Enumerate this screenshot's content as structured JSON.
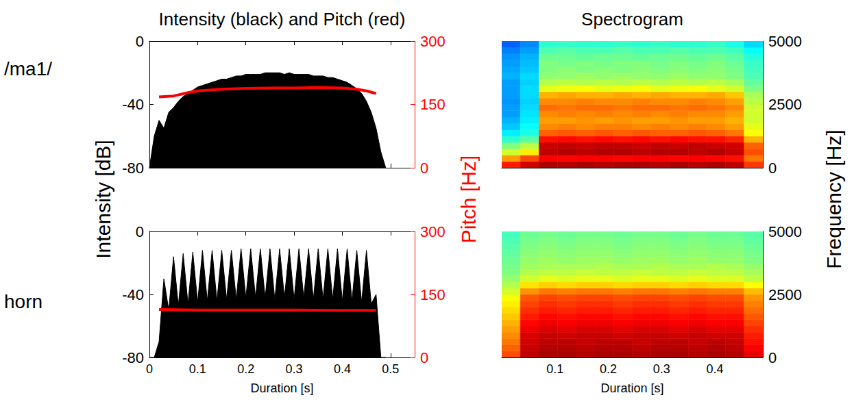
{
  "chart_data": [
    {
      "type": "line",
      "title": "Intensity (black) and Pitch (red)",
      "row_label": "/ma1/",
      "ylabel": "Intensity [dB]",
      "y2label": "Pitch [Hz]",
      "xlim": [
        0,
        0.55
      ],
      "xticks": [
        0,
        0.1,
        0.2,
        0.3,
        0.4,
        0.5
      ],
      "ylim": [
        -80,
        0
      ],
      "yticks": [
        -80,
        -40,
        0
      ],
      "y2lim": [
        0,
        300
      ],
      "y2ticks": [
        0,
        150,
        300
      ],
      "tick_labels": "y",
      "series": [
        {
          "type": "area",
          "color": "#000000",
          "x": [
            0,
            0.01,
            0.02,
            0.03,
            0.04,
            0.05,
            0.06,
            0.07,
            0.08,
            0.09,
            0.1,
            0.11,
            0.12,
            0.13,
            0.14,
            0.15,
            0.16,
            0.17,
            0.18,
            0.19,
            0.2,
            0.21,
            0.22,
            0.23,
            0.24,
            0.25,
            0.26,
            0.27,
            0.28,
            0.29,
            0.3,
            0.31,
            0.32,
            0.33,
            0.34,
            0.35,
            0.36,
            0.37,
            0.38,
            0.39,
            0.4,
            0.41,
            0.42,
            0.43,
            0.44,
            0.45,
            0.46,
            0.47,
            0.48,
            0.49
          ],
          "values": [
            -80,
            -60,
            -50,
            -55,
            -45,
            -42,
            -38,
            -35,
            -33,
            -31,
            -29,
            -28,
            -27,
            -26,
            -25,
            -24,
            -24,
            -23,
            -22,
            -22,
            -21,
            -21,
            -21,
            -21,
            -20,
            -20,
            -20,
            -20,
            -21,
            -20,
            -21,
            -21,
            -21,
            -21,
            -22,
            -22,
            -22,
            -23,
            -23,
            -24,
            -25,
            -26,
            -28,
            -30,
            -33,
            -38,
            -45,
            -55,
            -70,
            -80
          ]
        },
        {
          "type": "line",
          "color": "#ff0000",
          "axis": "y2",
          "x": [
            0.02,
            0.05,
            0.08,
            0.1,
            0.15,
            0.2,
            0.25,
            0.3,
            0.35,
            0.4,
            0.43,
            0.45,
            0.47
          ],
          "values": [
            168,
            170,
            178,
            182,
            186,
            188,
            189,
            189,
            190,
            189,
            186,
            182,
            176
          ]
        }
      ]
    },
    {
      "type": "heatmap",
      "title": "Spectrogram",
      "ylabel": "Frequency [Hz]",
      "xlim": [
        0,
        0.49
      ],
      "xticks": [
        0.1,
        0.2,
        0.3,
        0.4
      ],
      "ylim": [
        0,
        5000
      ],
      "yticks": [
        0,
        2500,
        5000
      ],
      "tick_labels": "y",
      "level_range": [
        0,
        100
      ],
      "x_edges": [
        0,
        0.035,
        0.07,
        0.105,
        0.14,
        0.175,
        0.21,
        0.245,
        0.28,
        0.315,
        0.35,
        0.385,
        0.42,
        0.455,
        0.49
      ],
      "y_edges": [
        0,
        250,
        500,
        750,
        1000,
        1250,
        1500,
        1750,
        2000,
        2250,
        2500,
        2750,
        3000,
        3250,
        3500,
        3750,
        4000,
        4250,
        4500,
        4750,
        5000
      ],
      "levels": [
        [
          85,
          92,
          96,
          95,
          96,
          95,
          96,
          96,
          95,
          96,
          95,
          96,
          94,
          82
        ],
        [
          72,
          80,
          88,
          87,
          88,
          88,
          87,
          88,
          88,
          87,
          88,
          87,
          86,
          76
        ],
        [
          58,
          64,
          94,
          95,
          94,
          95,
          95,
          94,
          95,
          95,
          94,
          95,
          93,
          80
        ],
        [
          50,
          56,
          93,
          94,
          93,
          94,
          94,
          93,
          94,
          93,
          94,
          93,
          92,
          78
        ],
        [
          42,
          46,
          86,
          87,
          86,
          87,
          86,
          87,
          86,
          87,
          86,
          86,
          84,
          70
        ],
        [
          36,
          40,
          78,
          79,
          78,
          79,
          78,
          79,
          78,
          78,
          79,
          78,
          76,
          62
        ],
        [
          32,
          38,
          74,
          75,
          74,
          75,
          75,
          74,
          75,
          74,
          75,
          74,
          72,
          60
        ],
        [
          30,
          36,
          72,
          72,
          73,
          72,
          73,
          72,
          72,
          73,
          72,
          72,
          70,
          58
        ],
        [
          28,
          35,
          74,
          75,
          74,
          75,
          74,
          75,
          74,
          75,
          74,
          74,
          72,
          58
        ],
        [
          28,
          34,
          77,
          76,
          77,
          77,
          76,
          77,
          77,
          76,
          77,
          76,
          74,
          58
        ],
        [
          27,
          33,
          74,
          74,
          75,
          74,
          74,
          75,
          74,
          74,
          75,
          74,
          72,
          56
        ],
        [
          28,
          34,
          70,
          71,
          70,
          70,
          71,
          70,
          71,
          70,
          70,
          71,
          68,
          54
        ],
        [
          28,
          34,
          60,
          61,
          62,
          60,
          61,
          62,
          60,
          61,
          62,
          60,
          58,
          50
        ],
        [
          28,
          33,
          55,
          56,
          55,
          56,
          55,
          56,
          55,
          56,
          55,
          56,
          54,
          47
        ],
        [
          30,
          34,
          52,
          52,
          53,
          52,
          53,
          52,
          52,
          53,
          52,
          52,
          50,
          45
        ],
        [
          29,
          32,
          50,
          51,
          50,
          51,
          50,
          51,
          50,
          51,
          50,
          51,
          49,
          44
        ],
        [
          28,
          31,
          50,
          49,
          50,
          49,
          50,
          50,
          49,
          50,
          49,
          50,
          48,
          43
        ],
        [
          27,
          30,
          48,
          48,
          47,
          48,
          48,
          47,
          48,
          48,
          47,
          48,
          46,
          41
        ],
        [
          25,
          28,
          45,
          46,
          45,
          45,
          46,
          45,
          45,
          46,
          45,
          45,
          44,
          38
        ],
        [
          22,
          26,
          42,
          43,
          42,
          42,
          43,
          42,
          43,
          42,
          42,
          43,
          40,
          34
        ]
      ]
    },
    {
      "type": "line",
      "row_label": "horn",
      "xlabel": "Duration [s]",
      "xlim": [
        0,
        0.55
      ],
      "xticks": [
        0,
        0.1,
        0.2,
        0.3,
        0.4,
        0.5
      ],
      "ylim": [
        -80,
        0
      ],
      "yticks": [
        -80,
        -40,
        0
      ],
      "y2lim": [
        0,
        300
      ],
      "y2ticks": [
        0,
        150,
        300
      ],
      "series": [
        {
          "type": "area",
          "color": "#000000",
          "x": [
            0,
            0.01,
            0.02,
            0.03,
            0.04,
            0.05,
            0.06,
            0.07,
            0.08,
            0.09,
            0.1,
            0.11,
            0.12,
            0.13,
            0.14,
            0.15,
            0.16,
            0.17,
            0.18,
            0.19,
            0.2,
            0.21,
            0.22,
            0.23,
            0.24,
            0.25,
            0.26,
            0.27,
            0.28,
            0.29,
            0.3,
            0.31,
            0.32,
            0.33,
            0.34,
            0.35,
            0.36,
            0.37,
            0.38,
            0.39,
            0.4,
            0.41,
            0.42,
            0.43,
            0.44,
            0.45,
            0.46,
            0.47,
            0.48,
            0.49
          ],
          "values": [
            -80,
            -80,
            -70,
            -30,
            -50,
            -16,
            -47,
            -14,
            -46,
            -13,
            -45,
            -12,
            -44,
            -12,
            -44,
            -12,
            -43,
            -12,
            -43,
            -11,
            -42,
            -11,
            -42,
            -11,
            -42,
            -11,
            -43,
            -11,
            -42,
            -11,
            -43,
            -11,
            -42,
            -11,
            -43,
            -11,
            -43,
            -11,
            -43,
            -11,
            -44,
            -11,
            -44,
            -12,
            -45,
            -12,
            -46,
            -40,
            -80,
            -80
          ]
        },
        {
          "type": "line",
          "color": "#ff0000",
          "axis": "y2",
          "x": [
            0.02,
            0.1,
            0.2,
            0.3,
            0.4,
            0.47
          ],
          "values": [
            114,
            113,
            113,
            113,
            112,
            112
          ]
        }
      ]
    },
    {
      "type": "heatmap",
      "xlabel": "Duration [s]",
      "xlim": [
        0,
        0.49
      ],
      "xticks": [
        0.1,
        0.2,
        0.3,
        0.4
      ],
      "ylim": [
        0,
        5000
      ],
      "yticks": [
        0,
        2500,
        5000
      ],
      "level_range": [
        0,
        100
      ],
      "x_edges": [
        0,
        0.035,
        0.07,
        0.105,
        0.14,
        0.175,
        0.21,
        0.245,
        0.28,
        0.315,
        0.35,
        0.385,
        0.42,
        0.455,
        0.49
      ],
      "y_edges": [
        0,
        250,
        500,
        750,
        1000,
        1250,
        1500,
        1750,
        2000,
        2250,
        2500,
        2750,
        3000,
        3250,
        3500,
        3750,
        4000,
        4250,
        4500,
        4750,
        5000
      ],
      "levels": [
        [
          80,
          94,
          96,
          96,
          95,
          96,
          96,
          95,
          96,
          96,
          95,
          96,
          95,
          90
        ],
        [
          78,
          93,
          95,
          95,
          94,
          95,
          95,
          94,
          95,
          95,
          94,
          95,
          94,
          88
        ],
        [
          76,
          92,
          94,
          94,
          93,
          94,
          94,
          93,
          94,
          94,
          93,
          94,
          93,
          86
        ],
        [
          74,
          91,
          93,
          92,
          93,
          93,
          92,
          93,
          93,
          92,
          93,
          92,
          92,
          85
        ],
        [
          72,
          89,
          91,
          90,
          91,
          91,
          90,
          91,
          91,
          90,
          91,
          90,
          90,
          83
        ],
        [
          70,
          87,
          89,
          88,
          89,
          89,
          88,
          89,
          89,
          88,
          89,
          88,
          88,
          81
        ],
        [
          68,
          85,
          87,
          86,
          87,
          87,
          86,
          87,
          87,
          86,
          87,
          86,
          86,
          79
        ],
        [
          66,
          83,
          85,
          84,
          85,
          85,
          84,
          85,
          85,
          84,
          85,
          84,
          84,
          77
        ],
        [
          64,
          81,
          83,
          82,
          83,
          83,
          82,
          83,
          83,
          82,
          83,
          82,
          82,
          75
        ],
        [
          62,
          79,
          81,
          80,
          81,
          81,
          80,
          81,
          81,
          80,
          81,
          80,
          80,
          73
        ],
        [
          58,
          73,
          76,
          75,
          76,
          76,
          75,
          76,
          76,
          75,
          76,
          75,
          75,
          69
        ],
        [
          55,
          65,
          67,
          66,
          67,
          67,
          66,
          67,
          67,
          66,
          67,
          66,
          66,
          62
        ],
        [
          52,
          58,
          60,
          59,
          60,
          60,
          59,
          60,
          60,
          59,
          60,
          59,
          59,
          56
        ],
        [
          50,
          55,
          56,
          56,
          57,
          56,
          56,
          57,
          56,
          56,
          57,
          56,
          56,
          54
        ],
        [
          49,
          53,
          54,
          54,
          54,
          55,
          54,
          54,
          55,
          54,
          54,
          55,
          54,
          52
        ],
        [
          48,
          52,
          53,
          52,
          53,
          53,
          52,
          53,
          53,
          52,
          53,
          52,
          52,
          50
        ],
        [
          47,
          51,
          52,
          51,
          52,
          52,
          51,
          52,
          52,
          51,
          52,
          51,
          51,
          49
        ],
        [
          46,
          50,
          51,
          50,
          51,
          51,
          50,
          51,
          51,
          50,
          51,
          50,
          50,
          48
        ],
        [
          45,
          49,
          50,
          49,
          50,
          50,
          49,
          50,
          50,
          49,
          50,
          49,
          49,
          47
        ],
        [
          44,
          48,
          49,
          48,
          49,
          49,
          48,
          49,
          49,
          48,
          49,
          48,
          48,
          46
        ]
      ]
    }
  ]
}
